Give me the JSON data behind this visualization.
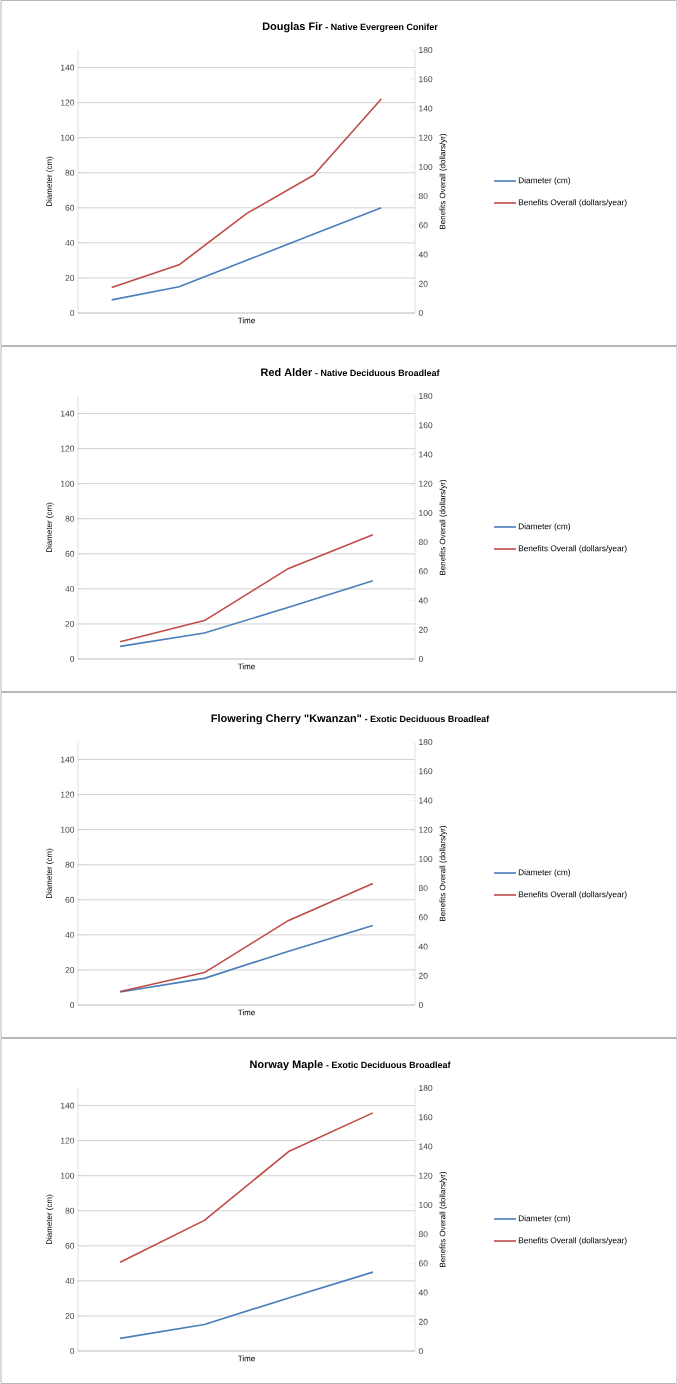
{
  "chart_data": [
    {
      "type": "line",
      "title": "Douglas Fir",
      "subtitle": "- Native Evergreen Conifer",
      "xlabel": "Time",
      "ylabel": "Diameter (cm)",
      "y2label": "Benefits Overall (dollars/yr)",
      "categories": [
        null,
        null,
        null,
        null,
        null
      ],
      "series": [
        {
          "name": "Diameter (cm)",
          "color": "#4a7ebb",
          "values": [
            7.5,
            15,
            30,
            45,
            60
          ]
        },
        {
          "name": "Benefits Overall (dollars/year)",
          "color": "#be4b48",
          "axis": "y2",
          "values": [
            17.5,
            33,
            68,
            94.5,
            146.5
          ]
        }
      ],
      "ylim": [
        0,
        150
      ],
      "yticks": [
        0,
        20,
        40,
        60,
        80,
        100,
        120,
        140
      ],
      "y2lim": [
        0,
        180
      ],
      "y2ticks": [
        0,
        20,
        40,
        60,
        80,
        100,
        120,
        140,
        160,
        180
      ],
      "grid": "y",
      "legend": "right"
    },
    {
      "type": "line",
      "title": "Red Alder",
      "subtitle": "- Native Deciduous Broadleaf",
      "xlabel": "Time",
      "ylabel": "Diameter (cm)",
      "y2label": "Benefits Overall (dollars/yr)",
      "categories": [
        null,
        null,
        null,
        null
      ],
      "series": [
        {
          "name": "Diameter (cm)",
          "color": "#4a7ebb",
          "values": [
            7.2,
            14.8,
            29.5,
            44.6
          ]
        },
        {
          "name": "Benefits Overall (dollars/year)",
          "color": "#be4b48",
          "axis": "y2",
          "values": [
            11.8,
            26.3,
            62,
            85.1
          ]
        }
      ],
      "ylim": [
        0,
        150
      ],
      "yticks": [
        0,
        20,
        40,
        60,
        80,
        100,
        120,
        140
      ],
      "y2lim": [
        0,
        180
      ],
      "y2ticks": [
        0,
        20,
        40,
        60,
        80,
        100,
        120,
        140,
        160,
        180
      ],
      "grid": "y",
      "legend": "right"
    },
    {
      "type": "line",
      "title": "Flowering Cherry \"Kwanzan\"",
      "subtitle": "- Exotic Deciduous Broadleaf",
      "xlabel": "Time",
      "ylabel": "Diameter (cm)",
      "y2label": "Benefits Overall (dollars/yr)",
      "categories": [
        null,
        null,
        null,
        null
      ],
      "series": [
        {
          "name": "Diameter (cm)",
          "color": "#4a7ebb",
          "values": [
            7.4,
            15.2,
            30.7,
            45.3
          ]
        },
        {
          "name": "Benefits Overall (dollars/year)",
          "color": "#be4b48",
          "axis": "y2",
          "values": [
            9.3,
            22.2,
            57.9,
            83.1
          ]
        }
      ],
      "ylim": [
        0,
        150
      ],
      "yticks": [
        0,
        20,
        40,
        60,
        80,
        100,
        120,
        140
      ],
      "y2lim": [
        0,
        180
      ],
      "y2ticks": [
        0,
        20,
        40,
        60,
        80,
        100,
        120,
        140,
        160,
        180
      ],
      "grid": "y",
      "legend": "right"
    },
    {
      "type": "line",
      "title": "Norway Maple",
      "subtitle": "- Exotic Deciduous  Broadleaf",
      "xlabel": "Time",
      "ylabel": "Diameter (cm)",
      "y2label": "Benefits Overall (dollars/yr)",
      "categories": [
        null,
        null,
        null,
        null
      ],
      "series": [
        {
          "name": "Diameter (cm)",
          "color": "#4a7ebb",
          "values": [
            7.2,
            15.1,
            30.3,
            45
          ]
        },
        {
          "name": "Benefits Overall (dollars/year)",
          "color": "#be4b48",
          "axis": "y2",
          "values": [
            60.7,
            89.4,
            136.5,
            163
          ]
        }
      ],
      "ylim": [
        0,
        150
      ],
      "yticks": [
        0,
        20,
        40,
        60,
        80,
        100,
        120,
        140
      ],
      "y2lim": [
        0,
        180
      ],
      "y2ticks": [
        0,
        20,
        40,
        60,
        80,
        100,
        120,
        140,
        160,
        180
      ],
      "grid": "y",
      "legend": "right"
    }
  ]
}
